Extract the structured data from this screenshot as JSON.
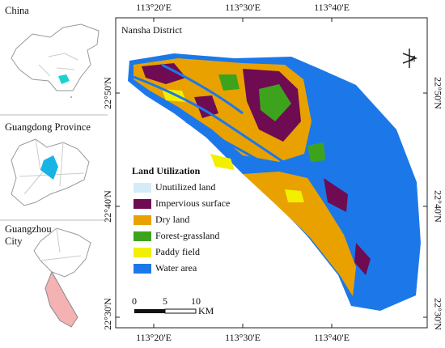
{
  "insets": [
    {
      "label": "China"
    },
    {
      "label": "Guangdong Province"
    },
    {
      "label": "Guangzhou City"
    }
  ],
  "map": {
    "title": "Nansha District",
    "north_label": "N",
    "longitude_labels": [
      "113°20'E",
      "113°30'E",
      "113°40'E"
    ],
    "latitude_labels": [
      "22°50'N",
      "22°40'N",
      "22°30'N"
    ]
  },
  "legend": {
    "title": "Land Utilization",
    "items": [
      {
        "name": "Unutilized land",
        "color": "#d4ecf9"
      },
      {
        "name": "Impervious surface",
        "color": "#6e0b52"
      },
      {
        "name": "Dry land",
        "color": "#e9a100"
      },
      {
        "name": "Forest-grassland",
        "color": "#3ea31c"
      },
      {
        "name": "Paddy field",
        "color": "#f2f000"
      },
      {
        "name": "Water area",
        "color": "#1c78e8"
      }
    ]
  },
  "scale_bar": {
    "labels": [
      0,
      5,
      10
    ],
    "unit": "KM"
  }
}
